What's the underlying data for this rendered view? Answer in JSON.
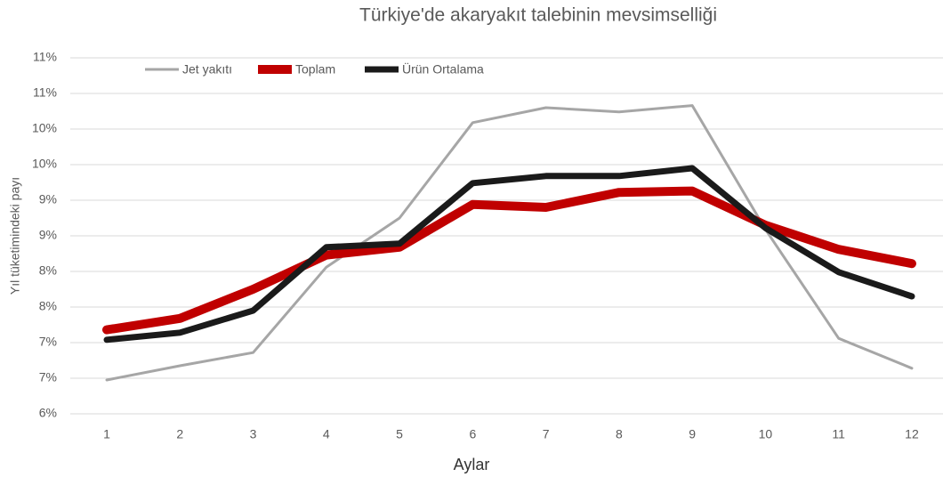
{
  "chart_data": {
    "type": "line",
    "title": "Türkiye'de akaryakıt talebinin mevsimselliği",
    "x_label": "Aylar",
    "y_label": "Yıl tüketimindeki payı",
    "categories": [
      "1",
      "2",
      "3",
      "4",
      "5",
      "6",
      "7",
      "8",
      "9",
      "10",
      "11",
      "12"
    ],
    "series": [
      {
        "name": "Jet yakıtı",
        "color": "#a6a6a6",
        "values": [
          6.475,
          6.675,
          6.86,
          8.06,
          8.75,
          10.09,
          10.3,
          10.24,
          10.33,
          8.59,
          7.06,
          6.64
        ]
      },
      {
        "name": "Toplam",
        "color": "#c00000",
        "values": [
          7.18,
          7.34,
          7.75,
          8.23,
          8.34,
          8.94,
          8.9,
          9.11,
          9.13,
          8.65,
          8.31,
          8.11
        ]
      },
      {
        "name": "Ürün Ortalama",
        "color": "#1a1a1a",
        "values": [
          7.04,
          7.14,
          7.45,
          8.34,
          8.39,
          9.24,
          9.34,
          9.34,
          9.45,
          8.61,
          7.99,
          7.65
        ]
      }
    ],
    "ylim": [
      6,
      11
    ],
    "yticks": [
      {
        "value": 6,
        "label": "6%"
      },
      {
        "value": 6.5,
        "label": "7%"
      },
      {
        "value": 7,
        "label": "7%"
      },
      {
        "value": 7.5,
        "label": "8%"
      },
      {
        "value": 8,
        "label": "8%"
      },
      {
        "value": 8.5,
        "label": "9%"
      },
      {
        "value": 9,
        "label": "9%"
      },
      {
        "value": 9.5,
        "label": "10%"
      },
      {
        "value": 10,
        "label": "10%"
      },
      {
        "value": 10.5,
        "label": "11%"
      },
      {
        "value": 11,
        "label": "11%"
      }
    ],
    "grid": true,
    "legend": "top-left"
  }
}
